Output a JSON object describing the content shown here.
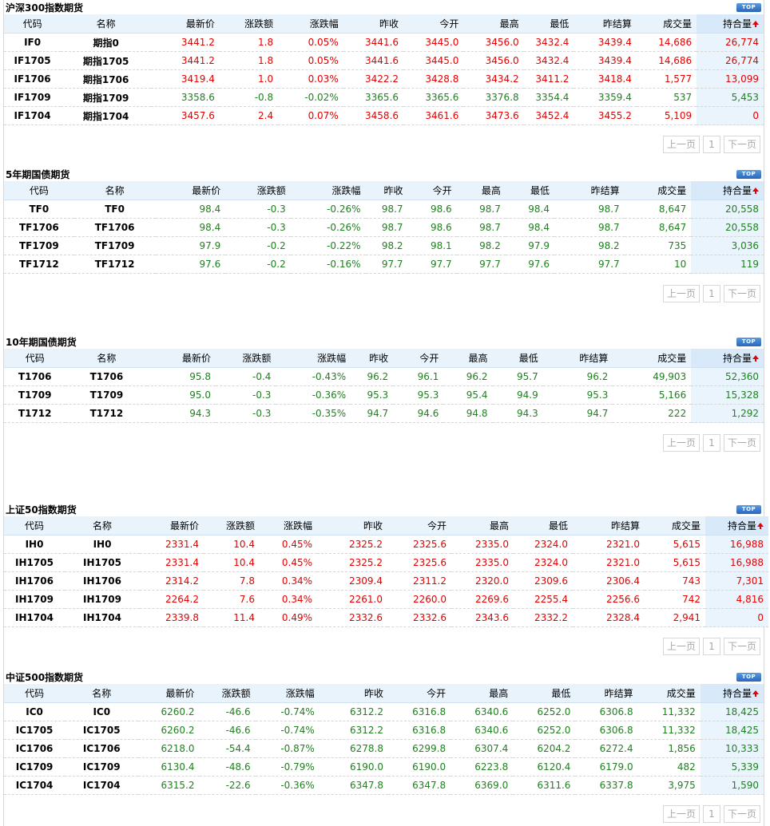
{
  "columns": [
    "代码",
    "名称",
    "最新价",
    "涨跌额",
    "涨跌幅",
    "昨收",
    "今开",
    "最高",
    "最低",
    "昨结算",
    "成交量",
    "持合量"
  ],
  "top_label": "TOP",
  "pager": {
    "prev": "上一页",
    "page": "1",
    "next": "下一页"
  },
  "colors": {
    "up": "#e60000",
    "down": "#218021",
    "header_bg": "#e8f3fc"
  },
  "sections": [
    {
      "title": "沪深300指数期货",
      "rows": [
        {
          "code": "IF0",
          "name": "期指0",
          "last": "3441.2",
          "chg": "1.8",
          "pct": "0.05%",
          "prev_close": "3441.6",
          "open": "3445.0",
          "high": "3456.0",
          "low": "3432.4",
          "prev_settle": "3439.4",
          "volume": "14,686",
          "oi": "26,774",
          "dir": "up"
        },
        {
          "code": "IF1705",
          "name": "期指1705",
          "last": "3441.2",
          "chg": "1.8",
          "pct": "0.05%",
          "prev_close": "3441.6",
          "open": "3445.0",
          "high": "3456.0",
          "low": "3432.4",
          "prev_settle": "3439.4",
          "volume": "14,686",
          "oi": "26,774",
          "dir": "up"
        },
        {
          "code": "IF1706",
          "name": "期指1706",
          "last": "3419.4",
          "chg": "1.0",
          "pct": "0.03%",
          "prev_close": "3422.2",
          "open": "3428.8",
          "high": "3434.2",
          "low": "3411.2",
          "prev_settle": "3418.4",
          "volume": "1,577",
          "oi": "13,099",
          "dir": "up"
        },
        {
          "code": "IF1709",
          "name": "期指1709",
          "last": "3358.6",
          "chg": "-0.8",
          "pct": "-0.02%",
          "prev_close": "3365.6",
          "open": "3365.6",
          "high": "3376.8",
          "low": "3354.4",
          "prev_settle": "3359.4",
          "volume": "537",
          "oi": "5,453",
          "dir": "down"
        },
        {
          "code": "IF1704",
          "name": "期指1704",
          "last": "3457.6",
          "chg": "2.4",
          "pct": "0.07%",
          "prev_close": "3458.6",
          "open": "3461.6",
          "high": "3473.6",
          "low": "3452.4",
          "prev_settle": "3455.2",
          "volume": "5,109",
          "oi": "0",
          "dir": "up"
        }
      ]
    },
    {
      "title": "5年期国债期货",
      "rows": [
        {
          "code": "TF0",
          "name": "TF0",
          "last": "98.4",
          "chg": "-0.3",
          "pct": "-0.26%",
          "prev_close": "98.7",
          "open": "98.6",
          "high": "98.7",
          "low": "98.4",
          "prev_settle": "98.7",
          "volume": "8,647",
          "oi": "20,558",
          "dir": "down"
        },
        {
          "code": "TF1706",
          "name": "TF1706",
          "last": "98.4",
          "chg": "-0.3",
          "pct": "-0.26%",
          "prev_close": "98.7",
          "open": "98.6",
          "high": "98.7",
          "low": "98.4",
          "prev_settle": "98.7",
          "volume": "8,647",
          "oi": "20,558",
          "dir": "down"
        },
        {
          "code": "TF1709",
          "name": "TF1709",
          "last": "97.9",
          "chg": "-0.2",
          "pct": "-0.22%",
          "prev_close": "98.2",
          "open": "98.1",
          "high": "98.2",
          "low": "97.9",
          "prev_settle": "98.2",
          "volume": "735",
          "oi": "3,036",
          "dir": "down"
        },
        {
          "code": "TF1712",
          "name": "TF1712",
          "last": "97.6",
          "chg": "-0.2",
          "pct": "-0.16%",
          "prev_close": "97.7",
          "open": "97.7",
          "high": "97.7",
          "low": "97.6",
          "prev_settle": "97.7",
          "volume": "10",
          "oi": "119",
          "dir": "down"
        }
      ]
    },
    {
      "title": "10年期国债期货",
      "rows": [
        {
          "code": "T1706",
          "name": "T1706",
          "last": "95.8",
          "chg": "-0.4",
          "pct": "-0.43%",
          "prev_close": "96.2",
          "open": "96.1",
          "high": "96.2",
          "low": "95.7",
          "prev_settle": "96.2",
          "volume": "49,903",
          "oi": "52,360",
          "dir": "down"
        },
        {
          "code": "T1709",
          "name": "T1709",
          "last": "95.0",
          "chg": "-0.3",
          "pct": "-0.36%",
          "prev_close": "95.3",
          "open": "95.3",
          "high": "95.4",
          "low": "94.9",
          "prev_settle": "95.3",
          "volume": "5,166",
          "oi": "15,328",
          "dir": "down"
        },
        {
          "code": "T1712",
          "name": "T1712",
          "last": "94.3",
          "chg": "-0.3",
          "pct": "-0.35%",
          "prev_close": "94.7",
          "open": "94.6",
          "high": "94.8",
          "low": "94.3",
          "prev_settle": "94.7",
          "volume": "222",
          "oi": "1,292",
          "dir": "down"
        }
      ]
    },
    {
      "title": "上证50指数期货",
      "rows": [
        {
          "code": "IH0",
          "name": "IH0",
          "last": "2331.4",
          "chg": "10.4",
          "pct": "0.45%",
          "prev_close": "2325.2",
          "open": "2325.6",
          "high": "2335.0",
          "low": "2324.0",
          "prev_settle": "2321.0",
          "volume": "5,615",
          "oi": "16,988",
          "dir": "up"
        },
        {
          "code": "IH1705",
          "name": "IH1705",
          "last": "2331.4",
          "chg": "10.4",
          "pct": "0.45%",
          "prev_close": "2325.2",
          "open": "2325.6",
          "high": "2335.0",
          "low": "2324.0",
          "prev_settle": "2321.0",
          "volume": "5,615",
          "oi": "16,988",
          "dir": "up"
        },
        {
          "code": "IH1706",
          "name": "IH1706",
          "last": "2314.2",
          "chg": "7.8",
          "pct": "0.34%",
          "prev_close": "2309.4",
          "open": "2311.2",
          "high": "2320.0",
          "low": "2309.6",
          "prev_settle": "2306.4",
          "volume": "743",
          "oi": "7,301",
          "dir": "up"
        },
        {
          "code": "IH1709",
          "name": "IH1709",
          "last": "2264.2",
          "chg": "7.6",
          "pct": "0.34%",
          "prev_close": "2261.0",
          "open": "2260.0",
          "high": "2269.6",
          "low": "2255.4",
          "prev_settle": "2256.6",
          "volume": "742",
          "oi": "4,816",
          "dir": "up"
        },
        {
          "code": "IH1704",
          "name": "IH1704",
          "last": "2339.8",
          "chg": "11.4",
          "pct": "0.49%",
          "prev_close": "2332.6",
          "open": "2332.6",
          "high": "2343.6",
          "low": "2332.2",
          "prev_settle": "2328.4",
          "volume": "2,941",
          "oi": "0",
          "dir": "up"
        }
      ]
    },
    {
      "title": "中证500指数期货",
      "rows": [
        {
          "code": "IC0",
          "name": "IC0",
          "last": "6260.2",
          "chg": "-46.6",
          "pct": "-0.74%",
          "prev_close": "6312.2",
          "open": "6316.8",
          "high": "6340.6",
          "low": "6252.0",
          "prev_settle": "6306.8",
          "volume": "11,332",
          "oi": "18,425",
          "dir": "down"
        },
        {
          "code": "IC1705",
          "name": "IC1705",
          "last": "6260.2",
          "chg": "-46.6",
          "pct": "-0.74%",
          "prev_close": "6312.2",
          "open": "6316.8",
          "high": "6340.6",
          "low": "6252.0",
          "prev_settle": "6306.8",
          "volume": "11,332",
          "oi": "18,425",
          "dir": "down"
        },
        {
          "code": "IC1706",
          "name": "IC1706",
          "last": "6218.0",
          "chg": "-54.4",
          "pct": "-0.87%",
          "prev_close": "6278.8",
          "open": "6299.8",
          "high": "6307.4",
          "low": "6204.2",
          "prev_settle": "6272.4",
          "volume": "1,856",
          "oi": "10,333",
          "dir": "down"
        },
        {
          "code": "IC1709",
          "name": "IC1709",
          "last": "6130.4",
          "chg": "-48.6",
          "pct": "-0.79%",
          "prev_close": "6190.0",
          "open": "6190.0",
          "high": "6223.8",
          "low": "6120.4",
          "prev_settle": "6179.0",
          "volume": "482",
          "oi": "5,339",
          "dir": "down"
        },
        {
          "code": "IC1704",
          "name": "IC1704",
          "last": "6315.2",
          "chg": "-22.6",
          "pct": "-0.36%",
          "prev_close": "6347.8",
          "open": "6347.8",
          "high": "6369.0",
          "low": "6311.6",
          "prev_settle": "6337.8",
          "volume": "3,975",
          "oi": "1,590",
          "dir": "down"
        }
      ]
    }
  ]
}
